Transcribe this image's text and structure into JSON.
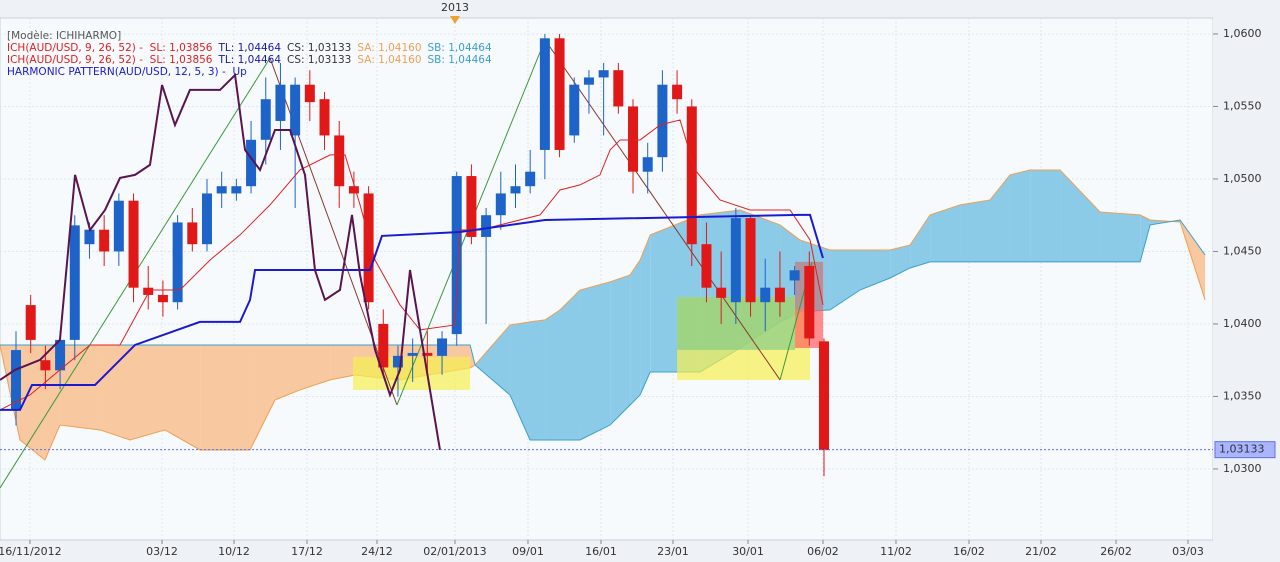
{
  "chart_data": {
    "type": "candlestick",
    "xlim": [
      -1.09,
      81.48
    ],
    "ylim": [
      1.0251,
      1.0611
    ],
    "yticks": [
      {
        "value": 1.03,
        "label": "1,0300"
      },
      {
        "value": 1.035,
        "label": "1,0350"
      },
      {
        "value": 1.04,
        "label": "1,0400"
      },
      {
        "value": 1.045,
        "label": "1,0450"
      },
      {
        "value": 1.05,
        "label": "1,0500"
      },
      {
        "value": 1.055,
        "label": "1,0550"
      },
      {
        "value": 1.06,
        "label": "1,0600"
      }
    ],
    "xticks": [
      {
        "value": 0.95,
        "label": "16/11/2012"
      },
      {
        "value": 9.94,
        "label": "03/12"
      },
      {
        "value": 14.84,
        "label": "10/12"
      },
      {
        "value": 19.81,
        "label": "17/12"
      },
      {
        "value": 24.57,
        "label": "24/12"
      },
      {
        "value": 29.88,
        "label": "02/01/2013"
      },
      {
        "value": 34.85,
        "label": "09/01"
      },
      {
        "value": 39.82,
        "label": "16/01"
      },
      {
        "value": 44.72,
        "label": "23/01"
      },
      {
        "value": 49.83,
        "label": "30/01"
      },
      {
        "value": 54.93,
        "label": "06/02"
      },
      {
        "value": 59.9,
        "label": "11/02"
      },
      {
        "value": 64.87,
        "label": "16/02"
      },
      {
        "value": 69.77,
        "label": "21/02"
      },
      {
        "value": 74.88,
        "label": "26/02"
      },
      {
        "value": 79.78,
        "label": "03/03"
      }
    ],
    "grid": true,
    "year_marker": {
      "x": 29.88,
      "label": "2013",
      "color": "#f0a030"
    },
    "last_price": {
      "value": 1.03133,
      "label": "1,03133",
      "color": "#6070e0"
    },
    "legend": [
      [
        {
          "text": "[Modèle: ICHIHARMO]",
          "color": "#555555"
        }
      ],
      [
        {
          "text": "ICH(AUD/USD, 9, 26, 52) -  SL: 1,03856",
          "color": "#e02020"
        },
        {
          "text": "TL: 1,04464",
          "color": "#1a1aa0"
        },
        {
          "text": "CS: 1,03133",
          "color": "#333333"
        },
        {
          "text": "SA: 1,04160",
          "color": "#f0a050"
        },
        {
          "text": "SB: 1,04464",
          "color": "#3aa0d0"
        }
      ],
      [
        {
          "text": "ICH(AUD/USD, 9, 26, 52) -  SL: 1,03856",
          "color": "#e02020"
        },
        {
          "text": "TL: 1,04464",
          "color": "#1a1aa0"
        },
        {
          "text": "CS: 1,03133",
          "color": "#333333"
        },
        {
          "text": "SA: 1,04160",
          "color": "#f0a050"
        },
        {
          "text": "SB: 1,04464",
          "color": "#3aa0d0"
        }
      ],
      [
        {
          "text": "HARMONIC PATTERN(AUD/USD, 12, 5, 3) -  Up",
          "color": "#1a1ad0"
        }
      ]
    ],
    "up_color": "#1e64c8",
    "down_color": "#e01818",
    "x": [
      0,
      1,
      2,
      3,
      4,
      5,
      6,
      7,
      8,
      9,
      10,
      11,
      12,
      13,
      14,
      15,
      16,
      17,
      18,
      19,
      20,
      21,
      22,
      23,
      24,
      25,
      26,
      27,
      28,
      29,
      30,
      31,
      32,
      33,
      34,
      35,
      36,
      37,
      38,
      39,
      40,
      41,
      42,
      43,
      44,
      45,
      46,
      47,
      48,
      49,
      50,
      51,
      52,
      53,
      54,
      55
    ],
    "open": [
      1.0341,
      1.0413,
      1.0375,
      1.0368,
      1.0389,
      1.0455,
      1.0465,
      1.045,
      1.0485,
      1.0425,
      1.042,
      1.0415,
      1.047,
      1.0455,
      1.049,
      1.049,
      1.0495,
      1.0527,
      1.054,
      1.053,
      1.0565,
      1.0555,
      1.053,
      1.0495,
      1.049,
      1.04,
      1.037,
      1.0378,
      1.038,
      1.0378,
      1.0393,
      1.0502,
      1.046,
      1.0475,
      1.049,
      1.0495,
      1.052,
      1.0597,
      1.053,
      1.0565,
      1.057,
      1.0575,
      1.055,
      1.0505,
      1.0515,
      1.0565,
      1.055,
      1.0455,
      1.0425,
      1.0415,
      1.0473,
      1.0415,
      1.0425,
      1.043,
      1.044,
      1.0388
    ],
    "high": [
      1.0395,
      1.042,
      1.0385,
      1.0395,
      1.0475,
      1.047,
      1.0475,
      1.049,
      1.049,
      1.044,
      1.043,
      1.0475,
      1.048,
      1.05,
      1.0505,
      1.05,
      1.054,
      1.057,
      1.058,
      1.057,
      1.0575,
      1.056,
      1.054,
      1.0505,
      1.0495,
      1.041,
      1.0385,
      1.039,
      1.0395,
      1.0395,
      1.0505,
      1.051,
      1.048,
      1.0505,
      1.051,
      1.052,
      1.06,
      1.06,
      1.057,
      1.0575,
      1.058,
      1.058,
      1.0555,
      1.0525,
      1.0575,
      1.0575,
      1.0555,
      1.047,
      1.045,
      1.048,
      1.0475,
      1.0445,
      1.045,
      1.044,
      1.045,
      1.039
    ],
    "low": [
      1.033,
      1.038,
      1.0355,
      1.0355,
      1.0375,
      1.0445,
      1.044,
      1.044,
      1.0415,
      1.041,
      1.0405,
      1.041,
      1.045,
      1.045,
      1.048,
      1.0485,
      1.049,
      1.051,
      1.052,
      1.048,
      1.054,
      1.052,
      1.048,
      1.048,
      1.041,
      1.0365,
      1.035,
      1.036,
      1.0365,
      1.0365,
      1.0385,
      1.0455,
      1.04,
      1.0465,
      1.048,
      1.049,
      1.05,
      1.0515,
      1.0525,
      1.0545,
      1.053,
      1.0545,
      1.049,
      1.049,
      1.0505,
      1.0545,
      1.044,
      1.0415,
      1.04,
      1.04,
      1.0405,
      1.0395,
      1.0405,
      1.042,
      1.0385,
      1.0295
    ],
    "close": [
      1.0382,
      1.0389,
      1.0368,
      1.0389,
      1.0468,
      1.0465,
      1.045,
      1.0485,
      1.0425,
      1.042,
      1.0415,
      1.047,
      1.0455,
      1.049,
      1.0495,
      1.0495,
      1.0527,
      1.0555,
      1.0565,
      1.0565,
      1.0553,
      1.053,
      1.0495,
      1.049,
      1.0415,
      1.037,
      1.0378,
      1.038,
      1.0378,
      1.039,
      1.0502,
      1.046,
      1.0475,
      1.049,
      1.0495,
      1.0505,
      1.0597,
      1.052,
      1.0565,
      1.057,
      1.0575,
      1.055,
      1.0505,
      1.0515,
      1.0565,
      1.0555,
      1.0455,
      1.0425,
      1.0418,
      1.0473,
      1.0415,
      1.0425,
      1.0415,
      1.0437,
      1.039,
      1.0313
    ],
    "cloud": {
      "color_a": "#f0a050",
      "color_b": "#3aa0d0",
      "fill_up": "#8ccbe8",
      "fill_down": "#f8c8a0",
      "x": [
        -1.09,
        0.27,
        1.97,
        2.99,
        5.72,
        7.76,
        10.14,
        12.53,
        15.93,
        17.63,
        19.33,
        21.38,
        23.08,
        26.14,
        30.91,
        31.25,
        33.63,
        34.99,
        36.01,
        37.03,
        38.39,
        40.44,
        41.8,
        42.48,
        43.17,
        46.57,
        49.29,
        52.01,
        53.37,
        55.41,
        57.45,
        59.5,
        60.86,
        62.22,
        64.26,
        66.3,
        67.66,
        69.03,
        71.07,
        73.79,
        76.52,
        77.2,
        79.24,
        80.94
      ],
      "span_a": [
        1.03855,
        1.032,
        1.03062,
        1.03303,
        1.03269,
        1.032,
        1.03269,
        1.03131,
        1.03131,
        1.03476,
        1.03545,
        1.03614,
        1.03648,
        1.03614,
        1.03697,
        1.03717,
        1.03993,
        1.04014,
        1.04028,
        1.04097,
        1.04234,
        1.0429,
        1.04338,
        1.04441,
        1.04614,
        1.04752,
        1.04786,
        1.04683,
        1.04579,
        1.0451,
        1.0451,
        1.0451,
        1.04545,
        1.04752,
        1.04821,
        1.04855,
        1.05028,
        1.05062,
        1.05062,
        1.04772,
        1.04752,
        1.04717,
        1.04703,
        1.04166
      ],
      "span_b": [
        1.03855,
        1.03855,
        1.03855,
        1.03855,
        1.03855,
        1.03855,
        1.03855,
        1.03855,
        1.03855,
        1.03855,
        1.03855,
        1.03855,
        1.03855,
        1.03855,
        1.03855,
        1.03717,
        1.0351,
        1.032,
        1.032,
        1.032,
        1.032,
        1.03303,
        1.03441,
        1.0351,
        1.03669,
        1.03669,
        1.03834,
        1.04014,
        1.04083,
        1.04097,
        1.04234,
        1.04317,
        1.04386,
        1.04428,
        1.04428,
        1.04428,
        1.04428,
        1.04428,
        1.04428,
        1.04428,
        1.04428,
        1.04683,
        1.04717,
        1.04476
      ]
    },
    "zones": [
      {
        "x0": 22.94,
        "x1": 30.91,
        "y0": 1.03545,
        "y1": 1.03772,
        "color": "#f5f050"
      },
      {
        "x0": 45,
        "x1": 54.05,
        "y0": 1.03614,
        "y1": 1.04186,
        "color": "#f5f050"
      },
      {
        "x0": 45,
        "x1": 53.03,
        "y0": 1.03821,
        "y1": 1.04186,
        "color": "#88cc88"
      },
      {
        "x0": 53.03,
        "x1": 54.94,
        "y0": 1.03834,
        "y1": 1.04428,
        "color": "#ff6060"
      },
      {
        "x0": 53.03,
        "x1": 54.87,
        "y0": 1.04097,
        "y1": 1.04428,
        "color": "#9a9aa8"
      }
    ],
    "lines": [
      {
        "color": "#e02020",
        "width": 1,
        "x": [
          -1.09,
          0.95,
          2.99,
          5.04,
          7.08,
          9.12,
          11.16,
          13.21,
          15.25,
          17.29,
          19.33,
          21.38,
          22.4,
          23.42,
          24.44,
          26.14,
          27.5,
          29.88,
          30.22,
          31.58,
          35.67,
          37.03,
          38.39,
          39.75,
          40.44,
          41.12,
          42.48,
          43.84,
          45.2,
          46.22,
          47.92,
          49.97,
          52.69,
          54.05,
          54.93
        ],
        "values": [
          1.03407,
          1.0351,
          1.03683,
          1.03855,
          1.03855,
          1.04234,
          1.04234,
          1.04441,
          1.04614,
          1.04821,
          1.05062,
          1.05166,
          1.05166,
          1.04821,
          1.04441,
          1.04131,
          1.03959,
          1.03993,
          1.04648,
          1.04648,
          1.04752,
          1.04924,
          1.04959,
          1.05028,
          1.052,
          1.05269,
          1.05269,
          1.05372,
          1.05407,
          1.05062,
          1.04855,
          1.04786,
          1.04786,
          1.04579,
          1.04131
        ]
      },
      {
        "color": "#1a1ad0",
        "width": 2,
        "x": [
          -1.09,
          0.27,
          1.09,
          5.38,
          8.1,
          12.52,
          15.25,
          15.93,
          16.27,
          24.1,
          24.91,
          30.22,
          36.01,
          53.37,
          54.05,
          54.93
        ],
        "values": [
          1.03407,
          1.03407,
          1.03579,
          1.03579,
          1.03855,
          1.04014,
          1.04014,
          1.04166,
          1.04372,
          1.04372,
          1.04607,
          1.04634,
          1.04717,
          1.04752,
          1.04752,
          1.04455
        ]
      },
      {
        "color": "#5a1450",
        "width": 2,
        "x": [
          -1.09,
          -0.07,
          1.63,
          2.99,
          4.02,
          5.04,
          6.06,
          7.08,
          8.1,
          9.12,
          9.94,
          10.82,
          11.84,
          13.89,
          14.91,
          15.59,
          16.61,
          17.63,
          18.65,
          19.67,
          20.35,
          21.03,
          22.05,
          22.87,
          23.42,
          24.44,
          25.46,
          26.14,
          26.82,
          27.5,
          28.18,
          28.86
        ],
        "values": [
          1.03614,
          1.03683,
          1.03752,
          1.0389,
          1.05028,
          1.04648,
          1.04786,
          1.05007,
          1.05028,
          1.05097,
          1.05648,
          1.05372,
          1.05614,
          1.05614,
          1.05717,
          1.052,
          1.05062,
          1.05338,
          1.05338,
          1.05028,
          1.04372,
          1.04166,
          1.04234,
          1.04752,
          1.04338,
          1.03821,
          1.0351,
          1.03683,
          1.04372,
          1.03959,
          1.03545,
          1.03131
        ]
      }
    ],
    "pattern": {
      "x": [
        -1.09,
        17.29,
        25.93,
        36.01,
        52.01,
        54.19
      ],
      "values": [
        1.02869,
        1.05834,
        1.03441,
        1.05959,
        1.03614,
        1.04428
      ],
      "leg_colors": [
        "#3a9a3a",
        "#8a3a2a",
        "#3a9a3a",
        "#8a3a2a",
        "#3a9a3a"
      ]
    }
  }
}
